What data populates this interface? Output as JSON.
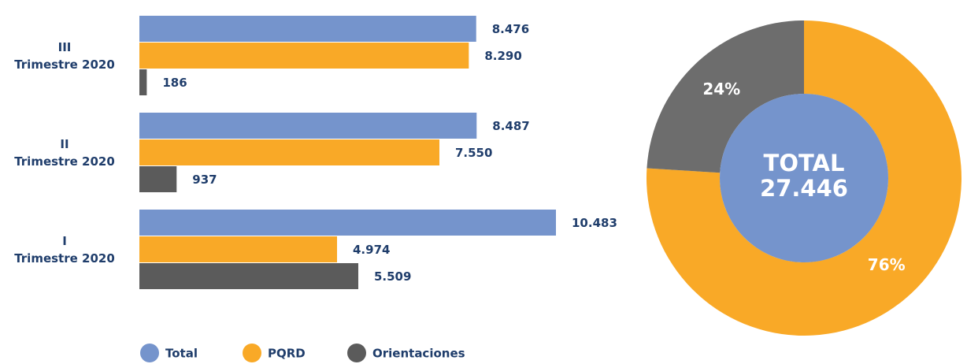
{
  "chart_data": [
    {
      "type": "bar",
      "orientation": "horizontal",
      "categories": [
        "III\nTrimestre 2020",
        "II\nTrimestre 2020",
        "I\nTrimestre 2020"
      ],
      "series": [
        {
          "name": "Total",
          "color": "#7594cc",
          "values": [
            8476,
            8487,
            10483
          ],
          "value_labels": [
            "8.476",
            "8.487",
            "10.483"
          ]
        },
        {
          "name": "PQRD",
          "color": "#f9a927",
          "values": [
            8290,
            7550,
            4974
          ],
          "value_labels": [
            "8.290",
            "7.550",
            "4.974"
          ]
        },
        {
          "name": "Orientaciones",
          "color": "#5b5b5b",
          "values": [
            186,
            937,
            5509
          ],
          "value_labels": [
            "186",
            "937",
            "5.509"
          ]
        }
      ],
      "legend": "bottom"
    },
    {
      "type": "pie",
      "donut": true,
      "values": [
        76,
        24
      ],
      "value_labels": [
        "76%",
        "24%"
      ],
      "colors": [
        "#f9a927",
        "#6d6d6d"
      ],
      "center_title": "TOTAL",
      "center_value": 27446,
      "center_value_label": "27.446",
      "center_color": "#7594cc"
    }
  ]
}
